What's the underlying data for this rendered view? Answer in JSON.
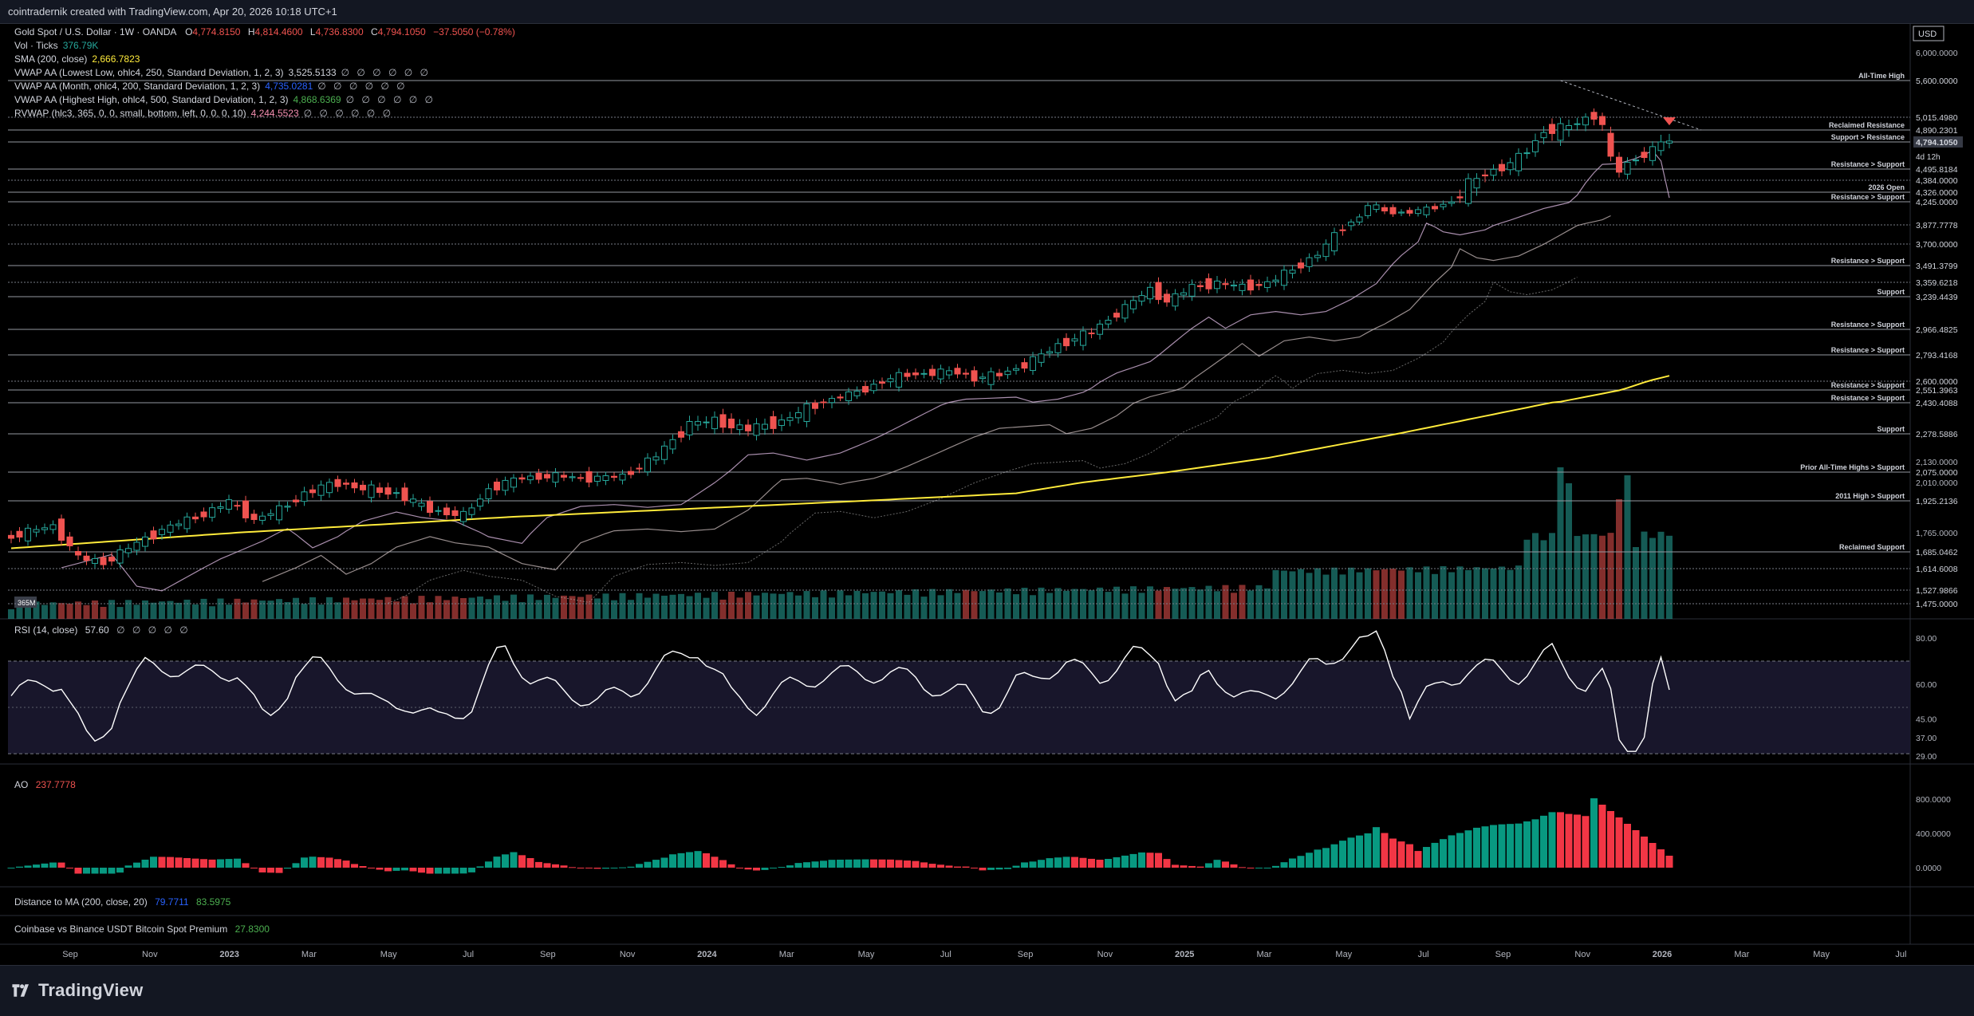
{
  "header": {
    "credit": "cointradernik created with TradingView.com, Apr 20, 2026 10:18 UTC+1"
  },
  "footer": {
    "brand": "TradingView"
  },
  "colors": {
    "up": "#26a69a",
    "down": "#ef5350",
    "sma": "#ffeb3b",
    "vwap": "#d7c7c7",
    "rsi": "#ffffff",
    "accent_green": "#4caf50",
    "accent_red": "#f23645",
    "blue": "#2962ff"
  },
  "legend": {
    "symbol": "Gold Spot / U.S. Dollar · 1W · OANDA",
    "ohlc": [
      {
        "label": "O",
        "value": "4,774.8150"
      },
      {
        "label": "H",
        "value": "4,814.4600"
      },
      {
        "label": "L",
        "value": "4,736.8300"
      },
      {
        "label": "C",
        "value": "4,794.1050"
      }
    ],
    "change": "−37.5050 (−0.78%)",
    "vol_label": "Vol · Ticks",
    "vol_value": "376.79K",
    "sma_label": "SMA (200, close)",
    "sma_value": "2,666.7823",
    "vwap_low_label": "VWAP AA (Lowest Low, ohlc4, 250, Standard Deviation, 1, 2, 3)",
    "vwap_low_value": "3,525.5133",
    "vwap_month_label": "VWAP AA (Month, ohlc4, 200, Standard Deviation, 1, 2, 3)",
    "vwap_month_value": "4,735.0281",
    "vwap_high_label": "VWAP AA (Highest High, ohlc4, 500, Standard Deviation, 1, 2, 3)",
    "vwap_high_value": "4,868.6369",
    "rvwap_label": "RVWAP (hlc3, 365, 0, 0, small, bottom, left, 0, 0, 0, 10)",
    "rvwap_value": "4,244.5523",
    "placeholders": "∅ ∅ ∅ ∅ ∅ ∅"
  },
  "panels": {
    "rsi_label": "RSI (14, close)",
    "rsi_value": "57.60",
    "ao_label": "AO",
    "ao_value": "237.7778",
    "dist_label": "Distance to MA (200, close, 20)",
    "dist_value1": "79.7711",
    "dist_value2": "83.5975",
    "premium_label": "Coinbase vs Binance USDT Bitcoin Spot Premium",
    "premium_value": "27.8300"
  },
  "chart_data": {
    "type": "candlestick",
    "title": "Gold Spot / U.S. Dollar · 1W · OANDA",
    "currency": "USD",
    "countdown": "4d 12h",
    "vol_badge": "365M",
    "x_ticks": [
      "Sep",
      "Nov",
      "2023",
      "Mar",
      "May",
      "Jul",
      "Sep",
      "Nov",
      "2024",
      "Mar",
      "May",
      "Jul",
      "Sep",
      "Nov",
      "2025",
      "Mar",
      "May",
      "Jul",
      "Sep",
      "Nov",
      "2026",
      "Mar",
      "May",
      "Jul"
    ],
    "price_axis_ticks": [
      "6,000.0000",
      "2,130.0000",
      "2,010.0000",
      "1,765.0000"
    ],
    "price_levels": [
      {
        "price": 5600.0,
        "label": "All-Time High",
        "tag": "5,600.0000"
      },
      {
        "price": 5015.498,
        "label": "",
        "tag": "5,015.4980"
      },
      {
        "price": 4890.2301,
        "label": "Reclaimed Resistance",
        "tag": "4,890.2301"
      },
      {
        "price": 4794.105,
        "label": "Support > Resistance",
        "tag": "4,794.1050"
      },
      {
        "price": 4495.8184,
        "label": "Resistance > Support",
        "tag": "4,495.8184"
      },
      {
        "price": 4384.0,
        "label": "",
        "tag": "4,384.0000"
      },
      {
        "price": 4326.0,
        "label": "2026 Open",
        "tag": "4,326.0000"
      },
      {
        "price": 4245.0,
        "label": "Resistance > Support",
        "tag": "4,245.0000"
      },
      {
        "price": 3877.7778,
        "label": "",
        "tag": "3,877.7778"
      },
      {
        "price": 3700.0,
        "label": "",
        "tag": "3,700.0000"
      },
      {
        "price": 3491.3799,
        "label": "Resistance > Support",
        "tag": "3,491.3799"
      },
      {
        "price": 3359.6218,
        "label": "",
        "tag": "3,359.6218"
      },
      {
        "price": 3239.4439,
        "label": "Support",
        "tag": "3,239.4439"
      },
      {
        "price": 2966.4825,
        "label": "Resistance > Support",
        "tag": "2,966.4825"
      },
      {
        "price": 2793.4168,
        "label": "Resistance > Support",
        "tag": "2,793.4168"
      },
      {
        "price": 2600.0,
        "label": "",
        "tag": "2,600.0000"
      },
      {
        "price": 2551.3963,
        "label": "Resistance > Support",
        "tag": "2,551.3963"
      },
      {
        "price": 2430.4088,
        "label": "Resistance > Support",
        "tag": "2,430.4088"
      },
      {
        "price": 2278.5886,
        "label": "Support",
        "tag": "2,278.5886"
      },
      {
        "price": 2075.0,
        "label": "Prior All-Time Highs > Support",
        "tag": "2,075.0000"
      },
      {
        "price": 1925.2136,
        "label": "2011 High > Support",
        "tag": "1,925.2136"
      },
      {
        "price": 1685.0462,
        "label": "Reclaimed Support",
        "tag": "1,685.0462"
      },
      {
        "price": 1614.6008,
        "label": "",
        "tag": "1,614.6008"
      },
      {
        "price": 1527.9866,
        "label": "",
        "tag": "1,527.9866"
      },
      {
        "price": 1475.0,
        "label": "",
        "tag": "1,475.0000"
      }
    ],
    "price_path": [
      [
        0,
        1740
      ],
      [
        6,
        1800
      ],
      [
        9,
        1660
      ],
      [
        12,
        1640
      ],
      [
        15,
        1700
      ],
      [
        19,
        1780
      ],
      [
        24,
        1860
      ],
      [
        27,
        1920
      ],
      [
        30,
        1830
      ],
      [
        33,
        1880
      ],
      [
        36,
        1960
      ],
      [
        40,
        2010
      ],
      [
        43,
        1980
      ],
      [
        47,
        1960
      ],
      [
        51,
        1880
      ],
      [
        55,
        1850
      ],
      [
        58,
        1980
      ],
      [
        62,
        2040
      ],
      [
        66,
        2050
      ],
      [
        70,
        2035
      ],
      [
        74,
        2050
      ],
      [
        78,
        2160
      ],
      [
        82,
        2330
      ],
      [
        85,
        2340
      ],
      [
        89,
        2300
      ],
      [
        93,
        2340
      ],
      [
        97,
        2420
      ],
      [
        101,
        2510
      ],
      [
        105,
        2600
      ],
      [
        108,
        2650
      ],
      [
        111,
        2660
      ],
      [
        114,
        2670
      ],
      [
        116,
        2620
      ],
      [
        119,
        2650
      ],
      [
        122,
        2720
      ],
      [
        126,
        2860
      ],
      [
        130,
        2950
      ],
      [
        133,
        3100
      ],
      [
        137,
        3300
      ],
      [
        139,
        3200
      ],
      [
        142,
        3320
      ],
      [
        145,
        3350
      ],
      [
        148,
        3320
      ],
      [
        151,
        3350
      ],
      [
        154,
        3460
      ],
      [
        157,
        3600
      ],
      [
        160,
        3860
      ],
      [
        162,
        4000
      ],
      [
        163,
        4200
      ],
      [
        165,
        4100
      ],
      [
        167,
        4070
      ],
      [
        170,
        4120
      ],
      [
        173,
        4250
      ],
      [
        177,
        4450
      ],
      [
        180,
        4550
      ],
      [
        182,
        4700
      ],
      [
        184,
        4890
      ],
      [
        186,
        4900
      ],
      [
        188,
        4960
      ],
      [
        190,
        5050
      ],
      [
        191,
        4930
      ],
      [
        192,
        4600
      ],
      [
        193,
        4480
      ],
      [
        195,
        4620
      ],
      [
        197,
        4700
      ],
      [
        198,
        4794
      ]
    ],
    "candle_count": 199,
    "sma_200": [
      [
        0,
        1700
      ],
      [
        60,
        1845
      ],
      [
        120,
        1960
      ],
      [
        150,
        2150
      ],
      [
        185,
        2440
      ],
      [
        198,
        2640
      ]
    ],
    "rsi_levels": [
      80,
      60,
      45,
      37,
      29
    ],
    "rsi_value": 57.6,
    "ao_ticks": [
      "800.0000",
      "400.0000",
      "0.0000"
    ]
  }
}
